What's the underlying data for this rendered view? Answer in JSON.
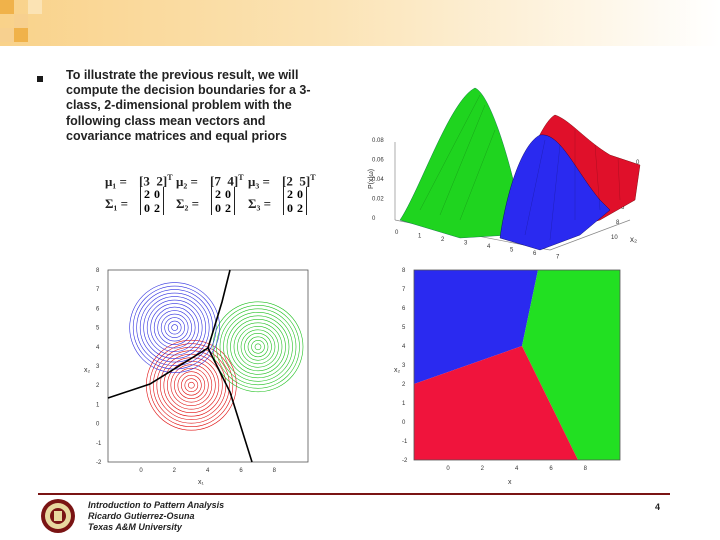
{
  "slide": {
    "bullet_text": "To illustrate the previous result, we will\ncompute the decision boundaries for a 3-\nclass, 2-dimensional problem with the\nfollowing class mean vectors and\ncovariance matrices and equal priors",
    "equations": {
      "mu1_label": "μ₁ =",
      "mu1": [
        "3",
        "2"
      ],
      "mu2_label": "μ₂ =",
      "mu2": [
        "7",
        "4"
      ],
      "mu3_label": "μ₃ =",
      "mu3": [
        "2",
        "5"
      ],
      "transpose": "T",
      "sigma1_label": "Σ₁ =",
      "sigma2_label": "Σ₂ =",
      "sigma3_label": "Σ₃ =",
      "cov": [
        "2",
        "0",
        "0",
        "2"
      ]
    }
  },
  "footer": {
    "line1": "Introduction to Pattern Analysis",
    "line2": "Ricardo Gutierrez-Osuna",
    "line3": "Texas A&M University",
    "page": "4"
  },
  "colors": {
    "banner_square_1": "#f0b24a",
    "banner_square_2": "#f7d08f",
    "footer_line": "#7a1414",
    "class_blue": "#2a2af0",
    "class_red": "#f0143c",
    "class_green": "#22e022"
  },
  "chart_data": [
    {
      "type": "surface",
      "z_ticks": [
        "0",
        "0.02",
        "0.04",
        "0.06",
        "0.08"
      ],
      "x_ticks": [
        "0",
        "1",
        "2",
        "3",
        "4",
        "5",
        "6",
        "7"
      ],
      "y_ticks": [
        "0",
        "2",
        "4",
        "6",
        "8",
        "10"
      ],
      "zlabel": "P(x|ω)",
      "ylabel": "x₂",
      "peaks": [
        {
          "color": "green",
          "x": 3,
          "y": 2
        },
        {
          "color": "blue",
          "x": 2,
          "y": 5
        },
        {
          "color": "red",
          "x": 7,
          "y": 4
        }
      ]
    },
    {
      "type": "contour",
      "x_ticks": [
        "0",
        "2",
        "4",
        "6",
        "8"
      ],
      "y_ticks": [
        "8",
        "7",
        "6",
        "5",
        "4",
        "3",
        "2",
        "1",
        "0",
        "-1",
        "-2"
      ],
      "xlabel": "x₁",
      "ylabel": "x₂",
      "xlim": [
        -2,
        10
      ],
      "ylim": [
        -2,
        8
      ],
      "centers": [
        {
          "color": "red",
          "x": 3,
          "y": 2
        },
        {
          "color": "green",
          "x": 7,
          "y": 4
        },
        {
          "color": "blue",
          "x": 2,
          "y": 5
        }
      ]
    },
    {
      "type": "region",
      "x_ticks": [
        "0",
        "2",
        "4",
        "6",
        "8"
      ],
      "y_ticks": [
        "8",
        "7",
        "6",
        "5",
        "4",
        "3",
        "2",
        "1",
        "0",
        "-1",
        "-2"
      ],
      "xlabel": "x",
      "ylabel": "x₂",
      "xlim": [
        -2,
        10
      ],
      "ylim": [
        -2,
        8
      ],
      "regions": [
        "blue",
        "green",
        "red"
      ]
    }
  ]
}
